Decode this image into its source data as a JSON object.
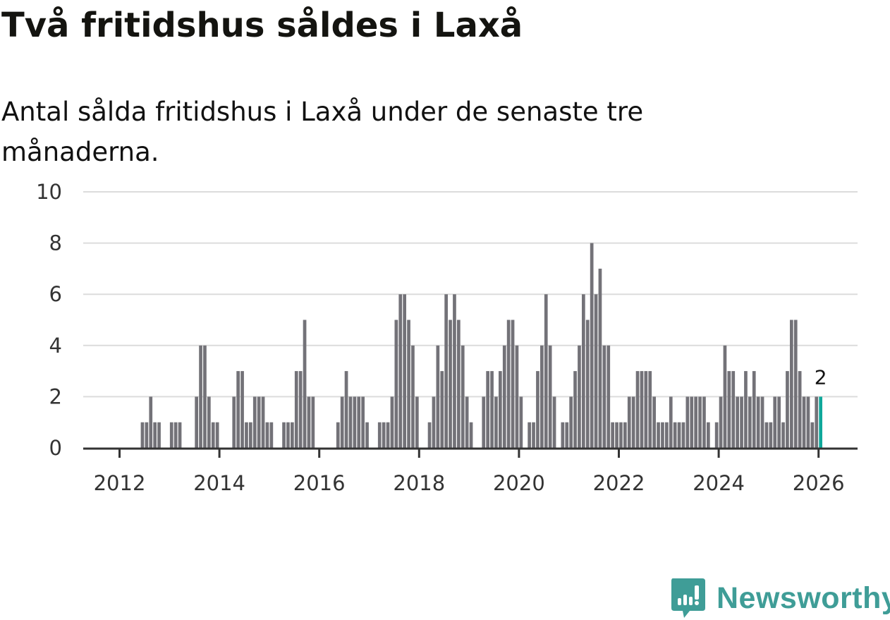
{
  "chart_data": {
    "type": "bar",
    "title": "Två fritidshus såldes i Laxå",
    "subtitle": "Antal sålda fritidshus i Laxå under de senaste tre månaderna.",
    "xlabel": "",
    "ylabel": "",
    "ylim": [
      0,
      10
    ],
    "yticks": [
      "0",
      "2",
      "4",
      "6",
      "8",
      "10"
    ],
    "xticks": [
      "2012",
      "2014",
      "2016",
      "2018",
      "2020",
      "2022",
      "2024",
      "2026"
    ],
    "grid": true,
    "start_month": "2012-01",
    "frequency": "monthly",
    "values": [
      0,
      0,
      0,
      0,
      0,
      1,
      1,
      2,
      1,
      1,
      0,
      0,
      1,
      1,
      1,
      0,
      0,
      0,
      2,
      4,
      4,
      2,
      1,
      1,
      0,
      0,
      0,
      2,
      3,
      3,
      1,
      1,
      2,
      2,
      2,
      1,
      1,
      0,
      0,
      1,
      1,
      1,
      3,
      3,
      5,
      2,
      2,
      0,
      0,
      0,
      0,
      0,
      1,
      2,
      3,
      2,
      2,
      2,
      2,
      1,
      0,
      0,
      1,
      1,
      1,
      2,
      5,
      6,
      6,
      5,
      4,
      2,
      0,
      0,
      1,
      2,
      4,
      3,
      6,
      5,
      6,
      5,
      4,
      2,
      1,
      0,
      0,
      2,
      3,
      3,
      2,
      3,
      4,
      5,
      5,
      4,
      2,
      0,
      1,
      1,
      3,
      4,
      6,
      4,
      2,
      0,
      1,
      1,
      2,
      3,
      4,
      6,
      5,
      8,
      6,
      7,
      4,
      4,
      1,
      1,
      1,
      1,
      2,
      2,
      3,
      3,
      3,
      3,
      2,
      1,
      1,
      1,
      2,
      1,
      1,
      1,
      2,
      2,
      2,
      2,
      2,
      1,
      0,
      1,
      2,
      4,
      3,
      3,
      2,
      2,
      3,
      2,
      3,
      2,
      2,
      1,
      1,
      2,
      2,
      1,
      3,
      5,
      5,
      3,
      2,
      2,
      1,
      2,
      2
    ],
    "highlight_label": "2",
    "colors": {
      "bar": "#737278",
      "highlight": "#10a89b",
      "grid": "#dcdcdc",
      "axis": "#333333"
    }
  },
  "brand": {
    "name": "Newsworthy",
    "color": "#3f9d97"
  }
}
